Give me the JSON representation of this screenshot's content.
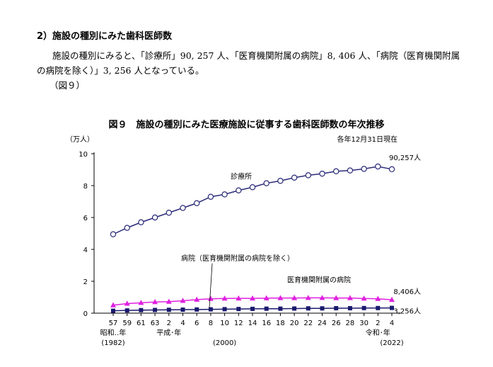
{
  "section": {
    "heading": "2）施設の種別にみた歯科医師数"
  },
  "paragraph": {
    "line1": "施設の種別にみると、「診療所」90, 257 人、「医育機関附属の病院」8, 406 人、「病院（医育機関附属",
    "line2": "の病院を除く）」3, 256 人となっている。",
    "figure_ref": "（図９）"
  },
  "chart_data": {
    "type": "line",
    "title": "図９　施設の種別にみた医療施設に従事する歯科医師数の年次推移",
    "note": "各年12月31日現在",
    "yunit": "（万人）",
    "ylim": [
      0,
      10
    ],
    "yticks": [
      0,
      2,
      4,
      6,
      8,
      10
    ],
    "grid": false,
    "x_tick_labels": [
      "57",
      "59",
      "61",
      "63",
      "2",
      "4",
      "6",
      "8",
      "10",
      "12",
      "14",
      "16",
      "18",
      "20",
      "22",
      "24",
      "26",
      "28",
      "30",
      "2",
      "4"
    ],
    "era_labels": [
      "昭和‥年",
      "平成･年",
      "令和･年"
    ],
    "year_labels": [
      "(1982)",
      "(2000)",
      "(2022)"
    ],
    "series": [
      {
        "name": "診療所",
        "color": "#2b2b7a",
        "marker": "circle-open",
        "end_label": "90,257人",
        "values": [
          4.95,
          5.35,
          5.7,
          6.0,
          6.3,
          6.6,
          6.9,
          7.3,
          7.45,
          7.7,
          7.9,
          8.15,
          8.3,
          8.5,
          8.65,
          8.75,
          8.9,
          8.95,
          9.05,
          9.2,
          9.03
        ]
      },
      {
        "name": "医育機関附属の病院",
        "color": "#e020e0",
        "marker": "triangle",
        "end_label": "8,406人",
        "values": [
          0.5,
          0.6,
          0.65,
          0.7,
          0.72,
          0.78,
          0.85,
          0.9,
          0.92,
          0.93,
          0.93,
          0.94,
          0.95,
          0.95,
          0.96,
          0.96,
          0.95,
          0.95,
          0.92,
          0.9,
          0.84
        ]
      },
      {
        "name": "病院（医育機関附属の病院を除く）",
        "color": "#1a1a6e",
        "marker": "square",
        "end_label": "3,256人",
        "values": [
          0.15,
          0.17,
          0.19,
          0.2,
          0.21,
          0.22,
          0.23,
          0.24,
          0.25,
          0.26,
          0.27,
          0.28,
          0.28,
          0.29,
          0.3,
          0.3,
          0.31,
          0.31,
          0.32,
          0.32,
          0.33
        ]
      }
    ]
  }
}
